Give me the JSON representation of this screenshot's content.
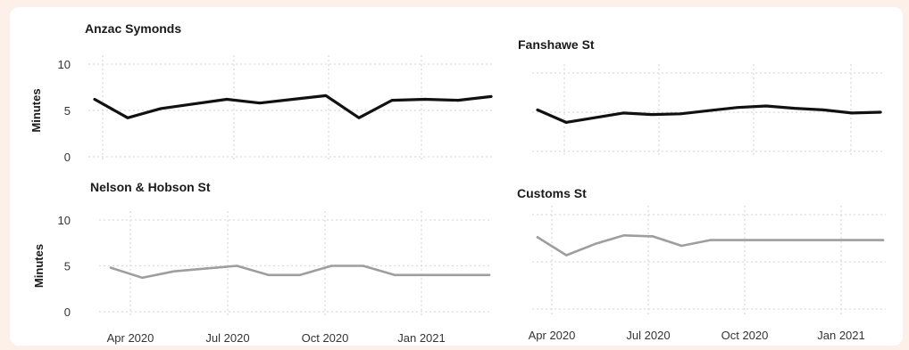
{
  "chart_data": [
    {
      "type": "line",
      "title": "Anzac Symonds",
      "ylabel": "Minutes",
      "xlabel": "",
      "ylim": [
        0,
        10
      ],
      "yticks": [
        "0",
        "5",
        "10"
      ],
      "xticks": [],
      "color": "#111111",
      "x": [
        "2020-03",
        "2020-04",
        "2020-05",
        "2020-06",
        "2020-07",
        "2020-08",
        "2020-09",
        "2020-10",
        "2020-11",
        "2020-12",
        "2021-01",
        "2021-02",
        "2021-03"
      ],
      "values": [
        6.2,
        4.2,
        5.2,
        5.7,
        6.2,
        5.8,
        6.2,
        6.6,
        4.2,
        6.1,
        6.2,
        6.1,
        6.5
      ]
    },
    {
      "type": "line",
      "title": "Fanshawe St",
      "ylabel": "",
      "xlabel": "",
      "ylim": [
        0,
        10
      ],
      "yticks": [],
      "xticks": [],
      "color": "#111111",
      "x": [
        "2020-03",
        "2020-04",
        "2020-05",
        "2020-06",
        "2020-07",
        "2020-08",
        "2020-09",
        "2020-10",
        "2020-11",
        "2020-12",
        "2021-01",
        "2021-02",
        "2021-03"
      ],
      "values": [
        5.3,
        3.7,
        4.3,
        4.9,
        4.7,
        4.8,
        5.2,
        5.6,
        5.8,
        5.5,
        5.3,
        4.9,
        5.0
      ]
    },
    {
      "type": "line",
      "title": "Nelson & Hobson St",
      "ylabel": "Minutes",
      "xlabel": "",
      "ylim": [
        0,
        10
      ],
      "yticks": [
        "0",
        "5",
        "10"
      ],
      "xticks": [
        "Apr 2020",
        "Jul 2020",
        "Oct 2020",
        "Jan 2021"
      ],
      "color": "#9e9e9e",
      "x": [
        "2020-03",
        "2020-04",
        "2020-05",
        "2020-06",
        "2020-07",
        "2020-08",
        "2020-09",
        "2020-10",
        "2020-11",
        "2020-12",
        "2021-01",
        "2021-02",
        "2021-03"
      ],
      "values": [
        4.8,
        3.7,
        4.4,
        4.7,
        5.0,
        4.0,
        4.0,
        5.0,
        5.0,
        4.0,
        4.0,
        4.0,
        4.0
      ]
    },
    {
      "type": "line",
      "title": "Customs St",
      "ylabel": "",
      "xlabel": "",
      "ylim": [
        0,
        10
      ],
      "yticks": [],
      "xticks": [
        "Apr 2020",
        "Jul 2020",
        "Oct 2020",
        "Jan 2021"
      ],
      "color": "#9e9e9e",
      "x": [
        "2020-03",
        "2020-04",
        "2020-05",
        "2020-06",
        "2020-07",
        "2020-08",
        "2020-09",
        "2020-10",
        "2020-11",
        "2020-12",
        "2021-01",
        "2021-02",
        "2021-03"
      ],
      "values": [
        7.6,
        5.7,
        6.9,
        7.8,
        7.7,
        6.7,
        7.3,
        7.3,
        7.3,
        7.3,
        7.3,
        7.3,
        7.3
      ]
    }
  ]
}
